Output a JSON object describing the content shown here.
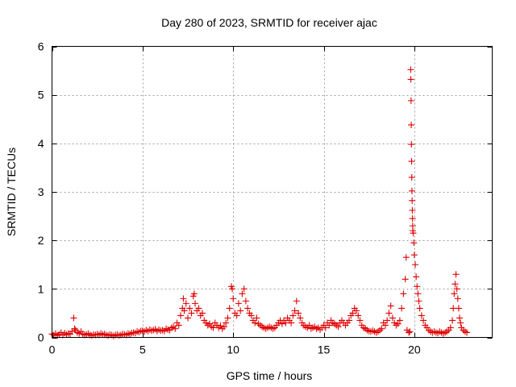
{
  "chart_data": {
    "type": "scatter",
    "title": "Day 280 of 2023, SRMTID for receiver ajac",
    "xlabel": "GPS time / hours",
    "ylabel": "SRMTID / TECUs",
    "xlim": [
      0,
      24.3
    ],
    "ylim": [
      0,
      6
    ],
    "xticks": [
      0,
      5,
      10,
      15,
      20
    ],
    "yticks": [
      0,
      1,
      2,
      3,
      4,
      5,
      6
    ],
    "grid": true,
    "marker": "+",
    "series": [
      {
        "name": "SRMTID",
        "color": "#e00000",
        "points": [
          [
            0.0,
            0.07
          ],
          [
            0.1,
            0.05
          ],
          [
            0.2,
            0.08
          ],
          [
            0.3,
            0.04
          ],
          [
            0.4,
            0.06
          ],
          [
            0.5,
            0.1
          ],
          [
            0.6,
            0.05
          ],
          [
            0.7,
            0.09
          ],
          [
            0.8,
            0.06
          ],
          [
            0.9,
            0.08
          ],
          [
            1.0,
            0.07
          ],
          [
            1.1,
            0.12
          ],
          [
            1.2,
            0.4
          ],
          [
            1.25,
            0.18
          ],
          [
            1.3,
            0.15
          ],
          [
            1.4,
            0.1
          ],
          [
            1.5,
            0.08
          ],
          [
            1.6,
            0.12
          ],
          [
            1.7,
            0.07
          ],
          [
            1.8,
            0.05
          ],
          [
            1.9,
            0.06
          ],
          [
            2.0,
            0.08
          ],
          [
            2.1,
            0.05
          ],
          [
            2.2,
            0.04
          ],
          [
            2.3,
            0.06
          ],
          [
            2.4,
            0.05
          ],
          [
            2.5,
            0.07
          ],
          [
            2.6,
            0.05
          ],
          [
            2.7,
            0.08
          ],
          [
            2.8,
            0.06
          ],
          [
            2.9,
            0.07
          ],
          [
            3.0,
            0.05
          ],
          [
            3.1,
            0.04
          ],
          [
            3.2,
            0.06
          ],
          [
            3.3,
            0.05
          ],
          [
            3.4,
            0.03
          ],
          [
            3.5,
            0.05
          ],
          [
            3.6,
            0.06
          ],
          [
            3.7,
            0.04
          ],
          [
            3.8,
            0.05
          ],
          [
            3.9,
            0.07
          ],
          [
            4.0,
            0.06
          ],
          [
            4.1,
            0.05
          ],
          [
            4.2,
            0.08
          ],
          [
            4.3,
            0.07
          ],
          [
            4.4,
            0.09
          ],
          [
            4.5,
            0.1
          ],
          [
            4.6,
            0.09
          ],
          [
            4.7,
            0.12
          ],
          [
            4.8,
            0.11
          ],
          [
            4.9,
            0.13
          ],
          [
            5.0,
            0.14
          ],
          [
            5.1,
            0.12
          ],
          [
            5.2,
            0.15
          ],
          [
            5.3,
            0.13
          ],
          [
            5.4,
            0.16
          ],
          [
            5.5,
            0.14
          ],
          [
            5.6,
            0.15
          ],
          [
            5.7,
            0.17
          ],
          [
            5.8,
            0.13
          ],
          [
            5.9,
            0.16
          ],
          [
            6.0,
            0.14
          ],
          [
            6.1,
            0.15
          ],
          [
            6.2,
            0.13
          ],
          [
            6.3,
            0.18
          ],
          [
            6.4,
            0.16
          ],
          [
            6.5,
            0.15
          ],
          [
            6.6,
            0.2
          ],
          [
            6.7,
            0.22
          ],
          [
            6.8,
            0.18
          ],
          [
            6.9,
            0.3
          ],
          [
            7.0,
            0.25
          ],
          [
            7.1,
            0.45
          ],
          [
            7.2,
            0.6
          ],
          [
            7.25,
            0.8
          ],
          [
            7.3,
            0.55
          ],
          [
            7.4,
            0.7
          ],
          [
            7.5,
            0.4
          ],
          [
            7.6,
            0.6
          ],
          [
            7.7,
            0.5
          ],
          [
            7.8,
            0.85
          ],
          [
            7.85,
            0.9
          ],
          [
            7.9,
            0.7
          ],
          [
            8.0,
            0.55
          ],
          [
            8.1,
            0.6
          ],
          [
            8.2,
            0.45
          ],
          [
            8.3,
            0.5
          ],
          [
            8.4,
            0.35
          ],
          [
            8.5,
            0.3
          ],
          [
            8.6,
            0.25
          ],
          [
            8.7,
            0.28
          ],
          [
            8.8,
            0.22
          ],
          [
            8.9,
            0.2
          ],
          [
            9.0,
            0.3
          ],
          [
            9.1,
            0.25
          ],
          [
            9.2,
            0.2
          ],
          [
            9.3,
            0.24
          ],
          [
            9.4,
            0.18
          ],
          [
            9.5,
            0.22
          ],
          [
            9.6,
            0.3
          ],
          [
            9.7,
            0.4
          ],
          [
            9.8,
            0.6
          ],
          [
            9.9,
            1.05
          ],
          [
            9.95,
            1.0
          ],
          [
            10.0,
            0.8
          ],
          [
            10.1,
            0.5
          ],
          [
            10.2,
            0.45
          ],
          [
            10.3,
            0.7
          ],
          [
            10.4,
            0.55
          ],
          [
            10.5,
            0.9
          ],
          [
            10.6,
            1.0
          ],
          [
            10.7,
            0.75
          ],
          [
            10.8,
            0.6
          ],
          [
            10.9,
            0.5
          ],
          [
            11.0,
            0.45
          ],
          [
            11.1,
            0.35
          ],
          [
            11.2,
            0.3
          ],
          [
            11.3,
            0.4
          ],
          [
            11.4,
            0.28
          ],
          [
            11.5,
            0.25
          ],
          [
            11.6,
            0.22
          ],
          [
            11.7,
            0.2
          ],
          [
            11.8,
            0.18
          ],
          [
            11.9,
            0.2
          ],
          [
            12.0,
            0.22
          ],
          [
            12.1,
            0.2
          ],
          [
            12.2,
            0.18
          ],
          [
            12.3,
            0.2
          ],
          [
            12.4,
            0.25
          ],
          [
            12.5,
            0.3
          ],
          [
            12.6,
            0.35
          ],
          [
            12.7,
            0.28
          ],
          [
            12.8,
            0.35
          ],
          [
            12.9,
            0.3
          ],
          [
            13.0,
            0.4
          ],
          [
            13.1,
            0.35
          ],
          [
            13.2,
            0.3
          ],
          [
            13.3,
            0.45
          ],
          [
            13.4,
            0.55
          ],
          [
            13.5,
            0.75
          ],
          [
            13.6,
            0.5
          ],
          [
            13.7,
            0.4
          ],
          [
            13.8,
            0.3
          ],
          [
            13.9,
            0.25
          ],
          [
            14.0,
            0.22
          ],
          [
            14.1,
            0.2
          ],
          [
            14.2,
            0.25
          ],
          [
            14.3,
            0.18
          ],
          [
            14.4,
            0.2
          ],
          [
            14.5,
            0.22
          ],
          [
            14.6,
            0.18
          ],
          [
            14.7,
            0.2
          ],
          [
            14.8,
            0.16
          ],
          [
            14.9,
            0.2
          ],
          [
            15.0,
            0.25
          ],
          [
            15.1,
            0.2
          ],
          [
            15.2,
            0.3
          ],
          [
            15.3,
            0.25
          ],
          [
            15.4,
            0.35
          ],
          [
            15.5,
            0.3
          ],
          [
            15.6,
            0.28
          ],
          [
            15.7,
            0.25
          ],
          [
            15.8,
            0.22
          ],
          [
            15.9,
            0.3
          ],
          [
            16.0,
            0.35
          ],
          [
            16.1,
            0.3
          ],
          [
            16.2,
            0.25
          ],
          [
            16.3,
            0.3
          ],
          [
            16.4,
            0.35
          ],
          [
            16.5,
            0.45
          ],
          [
            16.6,
            0.5
          ],
          [
            16.7,
            0.6
          ],
          [
            16.8,
            0.55
          ],
          [
            16.9,
            0.45
          ],
          [
            17.0,
            0.35
          ],
          [
            17.1,
            0.25
          ],
          [
            17.2,
            0.2
          ],
          [
            17.3,
            0.18
          ],
          [
            17.4,
            0.15
          ],
          [
            17.5,
            0.13
          ],
          [
            17.6,
            0.12
          ],
          [
            17.7,
            0.14
          ],
          [
            17.8,
            0.12
          ],
          [
            17.9,
            0.1
          ],
          [
            18.0,
            0.12
          ],
          [
            18.1,
            0.15
          ],
          [
            18.2,
            0.18
          ],
          [
            18.3,
            0.3
          ],
          [
            18.4,
            0.25
          ],
          [
            18.5,
            0.35
          ],
          [
            18.6,
            0.5
          ],
          [
            18.7,
            0.65
          ],
          [
            18.8,
            0.4
          ],
          [
            18.9,
            0.3
          ],
          [
            19.0,
            0.25
          ],
          [
            19.1,
            0.28
          ],
          [
            19.2,
            0.35
          ],
          [
            19.3,
            0.6
          ],
          [
            19.4,
            0.9
          ],
          [
            19.5,
            1.2
          ],
          [
            19.55,
            1.65
          ],
          [
            19.6,
            0.15
          ],
          [
            19.7,
            0.1
          ],
          [
            19.75,
            0.12
          ],
          [
            19.8,
            5.52
          ],
          [
            19.81,
            5.32
          ],
          [
            19.82,
            4.88
          ],
          [
            19.83,
            4.38
          ],
          [
            19.84,
            3.98
          ],
          [
            19.85,
            3.63
          ],
          [
            19.86,
            3.3
          ],
          [
            19.87,
            3.02
          ],
          [
            19.88,
            2.82
          ],
          [
            19.89,
            2.62
          ],
          [
            19.9,
            2.45
          ],
          [
            19.91,
            2.3
          ],
          [
            19.92,
            2.2
          ],
          [
            19.94,
            2.15
          ],
          [
            19.97,
            1.95
          ],
          [
            20.0,
            1.7
          ],
          [
            20.05,
            1.5
          ],
          [
            20.1,
            1.25
          ],
          [
            20.15,
            1.05
          ],
          [
            20.2,
            0.9
          ],
          [
            20.25,
            0.75
          ],
          [
            20.3,
            0.6
          ],
          [
            20.4,
            0.45
          ],
          [
            20.5,
            0.35
          ],
          [
            20.6,
            0.25
          ],
          [
            20.7,
            0.2
          ],
          [
            20.8,
            0.15
          ],
          [
            20.9,
            0.12
          ],
          [
            21.0,
            0.1
          ],
          [
            21.1,
            0.12
          ],
          [
            21.2,
            0.1
          ],
          [
            21.3,
            0.09
          ],
          [
            21.4,
            0.12
          ],
          [
            21.5,
            0.1
          ],
          [
            21.6,
            0.08
          ],
          [
            21.7,
            0.1
          ],
          [
            21.8,
            0.12
          ],
          [
            21.9,
            0.15
          ],
          [
            22.0,
            0.2
          ],
          [
            22.1,
            0.35
          ],
          [
            22.15,
            0.6
          ],
          [
            22.2,
            0.9
          ],
          [
            22.25,
            1.1
          ],
          [
            22.3,
            1.3
          ],
          [
            22.35,
            1.0
          ],
          [
            22.4,
            0.8
          ],
          [
            22.45,
            0.6
          ],
          [
            22.5,
            0.4
          ],
          [
            22.55,
            0.3
          ],
          [
            22.6,
            0.2
          ],
          [
            22.7,
            0.15
          ],
          [
            22.8,
            0.12
          ],
          [
            22.9,
            0.1
          ]
        ]
      }
    ]
  }
}
